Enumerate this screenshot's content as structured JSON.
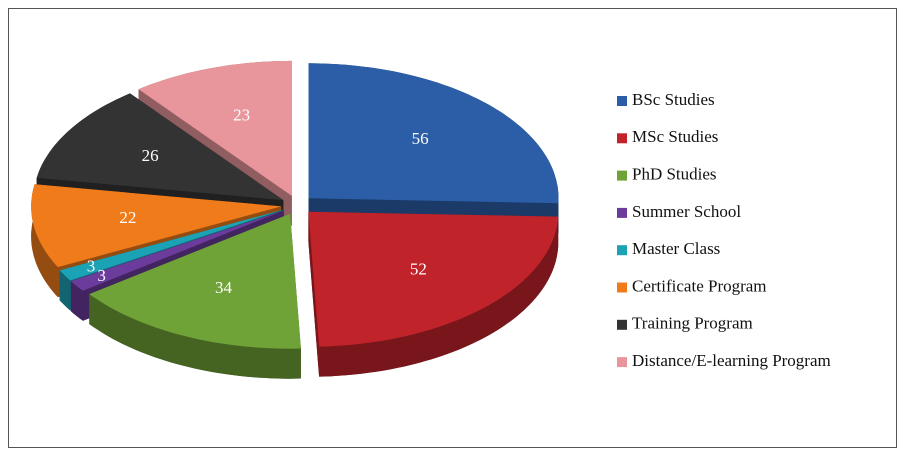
{
  "chart_data": {
    "type": "pie",
    "three_d": true,
    "exploded": true,
    "categories": [
      "BSc Studies",
      "MSc Studies",
      "PhD Studies",
      "Summer School",
      "Master Class",
      "Certificate Program",
      "Training Program",
      "Distance/E-learning Program"
    ],
    "values": [
      56,
      52,
      34,
      3,
      3,
      22,
      26,
      23
    ],
    "colors": [
      "#2b5ea7",
      "#c1232b",
      "#6fa237",
      "#6b3c9b",
      "#1ba2b4",
      "#ef7b1a",
      "#333333",
      "#e8969b"
    ],
    "legend": "right"
  }
}
